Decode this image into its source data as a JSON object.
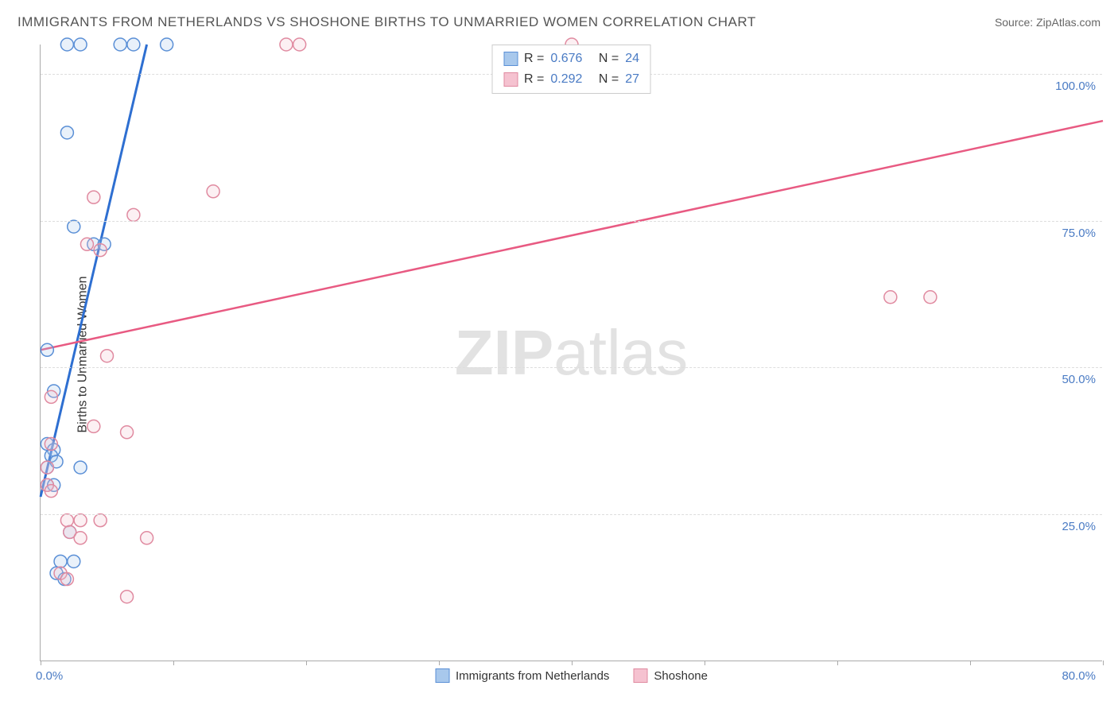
{
  "title": "IMMIGRANTS FROM NETHERLANDS VS SHOSHONE BIRTHS TO UNMARRIED WOMEN CORRELATION CHART",
  "source_label": "Source:",
  "source_value": "ZipAtlas.com",
  "y_axis_label": "Births to Unmarried Women",
  "watermark": {
    "bold": "ZIP",
    "rest": "atlas"
  },
  "chart": {
    "type": "scatter",
    "background_color": "#ffffff",
    "grid_color": "#dddddd",
    "axis_color": "#aaaaaa",
    "tick_label_color": "#4a7bc4",
    "xlim": [
      0,
      80
    ],
    "ylim": [
      0,
      105
    ],
    "x_ticks": [
      0,
      10,
      20,
      30,
      40,
      50,
      60,
      70,
      80
    ],
    "x_tick_labels": {
      "0": "0.0%",
      "80": "80.0%"
    },
    "y_gridlines": [
      25,
      50,
      75,
      100
    ],
    "y_grid_labels": [
      "25.0%",
      "50.0%",
      "75.0%",
      "100.0%"
    ],
    "marker_radius": 8,
    "marker_stroke_width": 1.5,
    "marker_fill_opacity": 0.25,
    "line_width_blue": 3,
    "line_width_pink": 2.5,
    "series": [
      {
        "name": "Immigrants from Netherlands",
        "color_stroke": "#5a8fd6",
        "color_fill": "#a8c8ec",
        "line_color": "#2e6fd1",
        "R": "0.676",
        "N": "24",
        "trend_line": {
          "x1": 0,
          "y1": 28,
          "x2": 8,
          "y2": 105
        },
        "points": [
          {
            "x": 2.0,
            "y": 105
          },
          {
            "x": 3.0,
            "y": 105
          },
          {
            "x": 6.0,
            "y": 105
          },
          {
            "x": 7.0,
            "y": 105
          },
          {
            "x": 9.5,
            "y": 105
          },
          {
            "x": 2.0,
            "y": 90
          },
          {
            "x": 2.5,
            "y": 74
          },
          {
            "x": 4.0,
            "y": 71
          },
          {
            "x": 4.8,
            "y": 71
          },
          {
            "x": 0.5,
            "y": 53
          },
          {
            "x": 1.0,
            "y": 46
          },
          {
            "x": 0.5,
            "y": 37
          },
          {
            "x": 1.0,
            "y": 36
          },
          {
            "x": 0.8,
            "y": 35
          },
          {
            "x": 0.5,
            "y": 33
          },
          {
            "x": 1.2,
            "y": 34
          },
          {
            "x": 3.0,
            "y": 33
          },
          {
            "x": 0.5,
            "y": 30
          },
          {
            "x": 1.0,
            "y": 30
          },
          {
            "x": 2.2,
            "y": 22
          },
          {
            "x": 1.5,
            "y": 17
          },
          {
            "x": 2.5,
            "y": 17
          },
          {
            "x": 1.2,
            "y": 15
          },
          {
            "x": 1.8,
            "y": 14
          }
        ]
      },
      {
        "name": "Shoshone",
        "color_stroke": "#e08aa0",
        "color_fill": "#f5c2d0",
        "line_color": "#e85a82",
        "R": "0.292",
        "N": "27",
        "trend_line": {
          "x1": 0,
          "y1": 53,
          "x2": 80,
          "y2": 92
        },
        "points": [
          {
            "x": 18.5,
            "y": 105
          },
          {
            "x": 19.5,
            "y": 105
          },
          {
            "x": 40,
            "y": 105
          },
          {
            "x": 13,
            "y": 80
          },
          {
            "x": 4,
            "y": 79
          },
          {
            "x": 7,
            "y": 76
          },
          {
            "x": 3.5,
            "y": 71
          },
          {
            "x": 4.5,
            "y": 70
          },
          {
            "x": 64,
            "y": 62
          },
          {
            "x": 67,
            "y": 62
          },
          {
            "x": 5,
            "y": 52
          },
          {
            "x": 0.8,
            "y": 45
          },
          {
            "x": 4,
            "y": 40
          },
          {
            "x": 6.5,
            "y": 39
          },
          {
            "x": 0.8,
            "y": 37
          },
          {
            "x": 0.5,
            "y": 33
          },
          {
            "x": 0.5,
            "y": 30
          },
          {
            "x": 0.8,
            "y": 29
          },
          {
            "x": 2,
            "y": 24
          },
          {
            "x": 3,
            "y": 24
          },
          {
            "x": 4.5,
            "y": 24
          },
          {
            "x": 2.2,
            "y": 22
          },
          {
            "x": 3,
            "y": 21
          },
          {
            "x": 8,
            "y": 21
          },
          {
            "x": 1.5,
            "y": 15
          },
          {
            "x": 2,
            "y": 14
          },
          {
            "x": 6.5,
            "y": 11
          }
        ]
      }
    ]
  },
  "legend_top": {
    "r_label": "R =",
    "n_label": "N ="
  },
  "legend_bottom": [
    {
      "label": "Immigrants from Netherlands",
      "swatch_fill": "#a8c8ec",
      "swatch_stroke": "#5a8fd6"
    },
    {
      "label": "Shoshone",
      "swatch_fill": "#f5c2d0",
      "swatch_stroke": "#e08aa0"
    }
  ]
}
